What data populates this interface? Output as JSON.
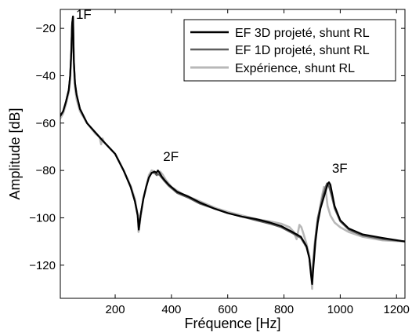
{
  "chart_data": {
    "type": "line",
    "title": "",
    "xlabel": "Fréquence [Hz]",
    "ylabel": "Amplitude [dB]",
    "xlim": [
      5,
      1230
    ],
    "ylim": [
      -134,
      -12
    ],
    "grid": false,
    "legend_position": "top-right",
    "xticks": [
      200,
      400,
      600,
      800,
      1000,
      1200
    ],
    "xtick_labels": [
      "200",
      "400",
      "600",
      "800",
      "1000",
      "1200"
    ],
    "yticks": [
      -20,
      -40,
      -60,
      -80,
      -100,
      -120
    ],
    "ytick_labels": [
      "−20",
      "−40",
      "−60",
      "−80",
      "−100",
      "−120"
    ],
    "annotations": [
      {
        "text": "1F",
        "x": 55,
        "y": -16
      },
      {
        "text": "2F",
        "x": 365,
        "y": -76
      },
      {
        "text": "3F",
        "x": 965,
        "y": -81
      }
    ],
    "series": [
      {
        "name": "EF 3D projeté, shunt RL",
        "color": "#000000",
        "width": 2.2,
        "x": [
          5,
          15,
          25,
          35,
          40,
          44,
          47,
          50,
          53,
          57,
          63,
          75,
          100,
          130,
          160,
          200,
          230,
          255,
          270,
          280,
          284,
          290,
          300,
          310,
          320,
          330,
          340,
          347,
          352,
          358,
          365,
          375,
          390,
          420,
          460,
          500,
          550,
          600,
          650,
          700,
          750,
          790,
          830,
          860,
          880,
          890,
          896,
          900,
          905,
          912,
          920,
          930,
          940,
          950,
          956,
          960,
          965,
          970,
          980,
          1000,
          1030,
          1080,
          1150,
          1230
        ],
        "y": [
          -57,
          -55,
          -51,
          -46,
          -40,
          -30,
          -18,
          -15,
          -33,
          -43,
          -48,
          -54,
          -60,
          -64,
          -68,
          -73,
          -80,
          -87,
          -93,
          -99,
          -105,
          -99,
          -92,
          -87,
          -83,
          -81,
          -80.5,
          -81,
          -80,
          -81,
          -82.5,
          -84,
          -86,
          -89,
          -91,
          -93.5,
          -96,
          -98,
          -99.5,
          -100.5,
          -102,
          -103.5,
          -106,
          -108,
          -112,
          -117,
          -124,
          -128,
          -120,
          -110,
          -102,
          -96,
          -92,
          -88,
          -85.5,
          -85,
          -86,
          -89,
          -95,
          -101,
          -104.5,
          -107,
          -108.5,
          -110
        ]
      },
      {
        "name": "EF 1D projeté, shunt RL",
        "color": "#5e5e5e",
        "width": 2.2,
        "x": [
          5,
          15,
          25,
          35,
          40,
          44,
          47,
          50,
          53,
          57,
          63,
          75,
          100,
          130,
          160,
          200,
          230,
          255,
          270,
          280,
          284,
          290,
          300,
          310,
          320,
          330,
          340,
          347,
          352,
          358,
          365,
          375,
          390,
          420,
          460,
          500,
          550,
          600,
          650,
          700,
          750,
          790,
          830,
          860,
          880,
          890,
          896,
          900,
          905,
          912,
          920,
          930,
          940,
          948,
          953,
          958,
          963,
          970,
          980,
          1000,
          1030,
          1080,
          1150,
          1230
        ],
        "y": [
          -57,
          -55,
          -51,
          -46,
          -40,
          -30,
          -18,
          -15,
          -33,
          -43,
          -48,
          -54,
          -60,
          -64,
          -68,
          -73,
          -80,
          -87,
          -93,
          -99,
          -105,
          -99,
          -92,
          -87,
          -83,
          -81,
          -81,
          -82,
          -81.5,
          -82,
          -83,
          -84.5,
          -86.5,
          -89.5,
          -91.5,
          -94,
          -96,
          -98,
          -99.5,
          -101,
          -102.5,
          -104,
          -106.5,
          -108.5,
          -112.5,
          -117,
          -123,
          -126,
          -118,
          -108,
          -100,
          -95,
          -90,
          -87,
          -85.5,
          -86,
          -88,
          -91,
          -96,
          -101.5,
          -105,
          -107.5,
          -109,
          -110
        ]
      },
      {
        "name": "Expérience, shunt RL",
        "color": "#b8b8b8",
        "width": 2.6,
        "x": [
          5,
          15,
          25,
          35,
          40,
          44,
          47,
          50,
          53,
          57,
          63,
          75,
          100,
          130,
          145,
          150,
          155,
          160,
          200,
          230,
          255,
          270,
          280,
          283,
          290,
          300,
          310,
          320,
          330,
          340,
          350,
          360,
          370,
          380,
          400,
          440,
          480,
          520,
          560,
          600,
          650,
          700,
          750,
          790,
          820,
          835,
          845,
          850,
          855,
          862,
          870,
          880,
          890,
          896,
          900,
          903,
          908,
          915,
          925,
          935,
          942,
          948,
          955,
          965,
          980,
          1000,
          1030,
          1080,
          1150,
          1230
        ],
        "y": [
          -58,
          -56,
          -52,
          -47,
          -41,
          -31,
          -19,
          -15,
          -36,
          -45,
          -50,
          -55,
          -60,
          -64.5,
          -66,
          -69,
          -66.5,
          -68,
          -73,
          -80,
          -86.5,
          -92,
          -99,
          -106,
          -100,
          -92,
          -87,
          -82,
          -80,
          -80.5,
          -82,
          -80.5,
          -82,
          -84,
          -87,
          -90,
          -92,
          -94,
          -96,
          -97.5,
          -99,
          -100.5,
          -101.5,
          -102.5,
          -104,
          -106,
          -109,
          -106,
          -103,
          -104,
          -107,
          -111,
          -116,
          -122,
          -130,
          -120,
          -112,
          -105,
          -98,
          -91,
          -87,
          -88,
          -95,
          -99,
          -102,
          -104,
          -106,
          -108,
          -109.5,
          -110
        ]
      }
    ]
  }
}
